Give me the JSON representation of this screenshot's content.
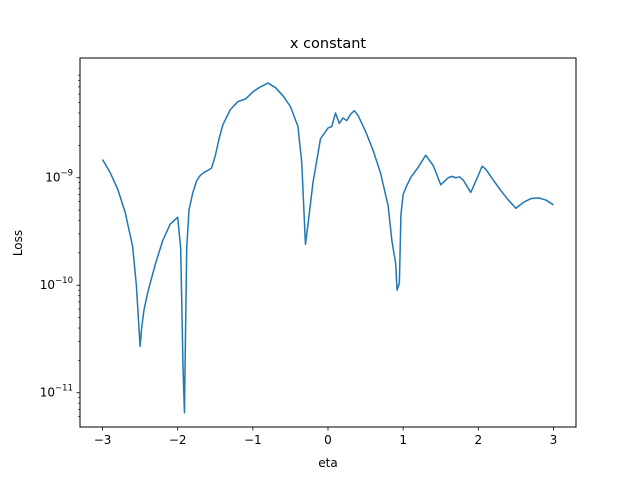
{
  "chart_data": {
    "type": "line",
    "title": "x constant",
    "xlabel": "eta",
    "ylabel": "Loss",
    "xlim": [
      -3.3,
      3.3
    ],
    "ylim": [
      4.8e-12,
      1.3e-08
    ],
    "yscale": "log",
    "grid": false,
    "x_ticks": [
      {
        "value": -3,
        "label": "−3"
      },
      {
        "value": -2,
        "label": "−2"
      },
      {
        "value": -1,
        "label": "−1"
      },
      {
        "value": 0,
        "label": "0"
      },
      {
        "value": 1,
        "label": "1"
      },
      {
        "value": 2,
        "label": "2"
      },
      {
        "value": 3,
        "label": "3"
      }
    ],
    "y_major_ticks": [
      {
        "value": 1e-11,
        "base": "10",
        "exp": "−11"
      },
      {
        "value": 1e-10,
        "base": "10",
        "exp": "−10"
      },
      {
        "value": 1e-09,
        "base": "10",
        "exp": "−9"
      }
    ],
    "y_minor_ticks": [
      6e-12,
      7e-12,
      8e-12,
      9e-12,
      2e-11,
      3e-11,
      4e-11,
      5e-11,
      6e-11,
      7e-11,
      8e-11,
      9e-11,
      2e-10,
      3e-10,
      4e-10,
      5e-10,
      6e-10,
      7e-10,
      8e-10,
      9e-10,
      2e-09,
      3e-09,
      4e-09,
      5e-09,
      6e-09,
      7e-09,
      8e-09,
      9e-09
    ],
    "series": [
      {
        "color": "#1f77b4",
        "x": [
          -3.0,
          -2.9,
          -2.8,
          -2.7,
          -2.6,
          -2.55,
          -2.5,
          -2.48,
          -2.45,
          -2.4,
          -2.3,
          -2.2,
          -2.1,
          -2.0,
          -1.96,
          -1.93,
          -1.91,
          -1.9,
          -1.88,
          -1.85,
          -1.8,
          -1.75,
          -1.7,
          -1.65,
          -1.6,
          -1.55,
          -1.5,
          -1.45,
          -1.4,
          -1.3,
          -1.2,
          -1.1,
          -1.05,
          -1.0,
          -0.9,
          -0.8,
          -0.7,
          -0.6,
          -0.5,
          -0.4,
          -0.35,
          -0.3,
          -0.27,
          -0.2,
          -0.1,
          0.0,
          0.05,
          0.1,
          0.15,
          0.2,
          0.25,
          0.3,
          0.35,
          0.4,
          0.45,
          0.5,
          0.6,
          0.7,
          0.8,
          0.85,
          0.9,
          0.92,
          0.95,
          0.97,
          1.0,
          1.05,
          1.1,
          1.2,
          1.3,
          1.4,
          1.5,
          1.6,
          1.65,
          1.7,
          1.75,
          1.8,
          1.9,
          2.0,
          2.05,
          2.1,
          2.2,
          2.3,
          2.4,
          2.5,
          2.6,
          2.7,
          2.8,
          2.9,
          3.0
        ],
        "y": [
          1.48e-09,
          1.12e-09,
          7.9e-10,
          4.8e-10,
          2.3e-10,
          1e-10,
          2.7e-11,
          4e-11,
          5.8e-11,
          8.5e-11,
          1.55e-10,
          2.6e-10,
          3.7e-10,
          4.3e-10,
          2.2e-10,
          1.8e-11,
          6.5e-12,
          2.2e-11,
          2.2e-10,
          5e-10,
          7.2e-10,
          9.3e-10,
          1.05e-09,
          1.12e-09,
          1.17e-09,
          1.23e-09,
          1.6e-09,
          2.3e-09,
          3.1e-09,
          4.3e-09,
          5.1e-09,
          5.4e-09,
          5.8e-09,
          6.3e-09,
          7e-09,
          7.6e-09,
          6.9e-09,
          5.8e-09,
          4.6e-09,
          3e-09,
          1.4e-09,
          2.4e-10,
          3.5e-10,
          9e-10,
          2.3e-09,
          2.9e-09,
          3e-09,
          4e-09,
          3.2e-09,
          3.6e-09,
          3.4e-09,
          3.9e-09,
          4.2e-09,
          3.8e-09,
          3.2e-09,
          2.7e-09,
          1.8e-09,
          1.1e-09,
          5.5e-10,
          2.6e-10,
          1.6e-10,
          9e-11,
          1.05e-10,
          4.5e-10,
          7e-10,
          8.5e-10,
          1e-09,
          1.25e-09,
          1.62e-09,
          1.3e-09,
          8.6e-10,
          1e-09,
          1.03e-09,
          1e-09,
          1.02e-09,
          9.5e-10,
          7.3e-10,
          1.05e-09,
          1.28e-09,
          1.2e-09,
          9.5e-10,
          7.6e-10,
          6.2e-10,
          5.2e-10,
          5.9e-10,
          6.4e-10,
          6.5e-10,
          6.2e-10,
          5.6e-10
        ]
      }
    ]
  }
}
